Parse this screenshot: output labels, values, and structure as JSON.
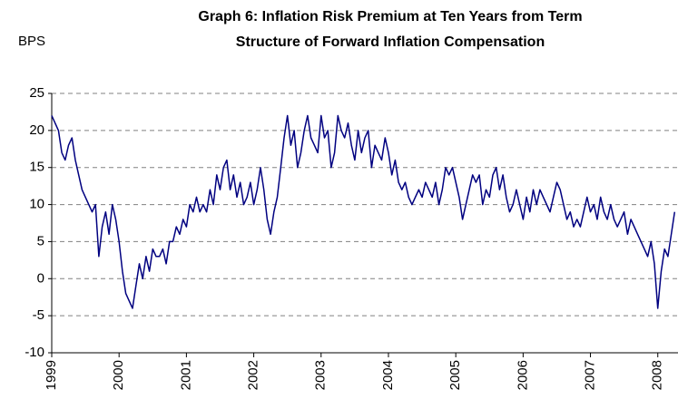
{
  "chart_data": {
    "type": "line",
    "title": "Graph 6: Inflation Risk Premium at Ten Years from Term",
    "subtitle": "Structure of Forward Inflation Compensation",
    "y_label": "BPS",
    "x": [
      1999.0,
      1999.05,
      1999.1,
      1999.15,
      1999.2,
      1999.25,
      1999.3,
      1999.35,
      1999.4,
      1999.45,
      1999.5,
      1999.55,
      1999.6,
      1999.65,
      1999.7,
      1999.75,
      1999.8,
      1999.85,
      1999.9,
      1999.95,
      2000.0,
      2000.05,
      2000.1,
      2000.15,
      2000.2,
      2000.25,
      2000.3,
      2000.35,
      2000.4,
      2000.45,
      2000.5,
      2000.55,
      2000.6,
      2000.65,
      2000.7,
      2000.75,
      2000.8,
      2000.85,
      2000.9,
      2000.95,
      2001.0,
      2001.05,
      2001.1,
      2001.15,
      2001.2,
      2001.25,
      2001.3,
      2001.35,
      2001.4,
      2001.45,
      2001.5,
      2001.55,
      2001.6,
      2001.65,
      2001.7,
      2001.75,
      2001.8,
      2001.85,
      2001.9,
      2001.95,
      2002.0,
      2002.05,
      2002.1,
      2002.15,
      2002.2,
      2002.25,
      2002.3,
      2002.35,
      2002.4,
      2002.45,
      2002.5,
      2002.55,
      2002.6,
      2002.65,
      2002.7,
      2002.75,
      2002.8,
      2002.85,
      2002.9,
      2002.95,
      2003.0,
      2003.05,
      2003.1,
      2003.15,
      2003.2,
      2003.25,
      2003.3,
      2003.35,
      2003.4,
      2003.45,
      2003.5,
      2003.55,
      2003.6,
      2003.65,
      2003.7,
      2003.75,
      2003.8,
      2003.85,
      2003.9,
      2003.95,
      2004.0,
      2004.05,
      2004.1,
      2004.15,
      2004.2,
      2004.25,
      2004.3,
      2004.35,
      2004.4,
      2004.45,
      2004.5,
      2004.55,
      2004.6,
      2004.65,
      2004.7,
      2004.75,
      2004.8,
      2004.85,
      2004.9,
      2004.95,
      2005.0,
      2005.05,
      2005.1,
      2005.15,
      2005.2,
      2005.25,
      2005.3,
      2005.35,
      2005.4,
      2005.45,
      2005.5,
      2005.55,
      2005.6,
      2005.65,
      2005.7,
      2005.75,
      2005.8,
      2005.85,
      2005.9,
      2005.95,
      2006.0,
      2006.05,
      2006.1,
      2006.15,
      2006.2,
      2006.25,
      2006.3,
      2006.35,
      2006.4,
      2006.45,
      2006.5,
      2006.55,
      2006.6,
      2006.65,
      2006.7,
      2006.75,
      2006.8,
      2006.85,
      2006.9,
      2006.95,
      2007.0,
      2007.05,
      2007.1,
      2007.15,
      2007.2,
      2007.25,
      2007.3,
      2007.35,
      2007.4,
      2007.45,
      2007.5,
      2007.55,
      2007.6,
      2007.65,
      2007.7,
      2007.75,
      2007.8,
      2007.85,
      2007.9,
      2007.95,
      2008.0,
      2008.05,
      2008.1,
      2008.15,
      2008.2,
      2008.25
    ],
    "series": [
      {
        "color": "#000080",
        "values": [
          22,
          21,
          20,
          17,
          16,
          18,
          19,
          16,
          14,
          12,
          11,
          10,
          9,
          10,
          3,
          7,
          9,
          6,
          10,
          8,
          5,
          1,
          -2,
          -3,
          -4,
          -1,
          2,
          0,
          3,
          1,
          4,
          3,
          3,
          4,
          2,
          5,
          5,
          7,
          6,
          8,
          7,
          10,
          9,
          11,
          9,
          10,
          9,
          12,
          10,
          14,
          12,
          15,
          16,
          12,
          14,
          11,
          13,
          10,
          11,
          13,
          10,
          12,
          15,
          12,
          8,
          6,
          9,
          11,
          15,
          19,
          22,
          18,
          20,
          15,
          17,
          20,
          22,
          19,
          18,
          17,
          22,
          19,
          20,
          15,
          17,
          22,
          20,
          19,
          21,
          18,
          16,
          20,
          17,
          19,
          20,
          15,
          18,
          17,
          16,
          19,
          17,
          14,
          16,
          13,
          12,
          13,
          11,
          10,
          11,
          12,
          11,
          13,
          12,
          11,
          13,
          10,
          12,
          15,
          14,
          15,
          13,
          11,
          8,
          10,
          12,
          14,
          13,
          14,
          10,
          12,
          11,
          14,
          15,
          12,
          14,
          11,
          9,
          10,
          12,
          10,
          8,
          11,
          9,
          12,
          10,
          12,
          11,
          10,
          9,
          11,
          13,
          12,
          10,
          8,
          9,
          7,
          8,
          7,
          9,
          11,
          9,
          10,
          8,
          11,
          9,
          8,
          10,
          8,
          7,
          8,
          9,
          6,
          8,
          7,
          6,
          5,
          4,
          3,
          5,
          2,
          -4,
          1,
          4,
          3,
          6,
          9
        ]
      }
    ],
    "xlim": [
      1999,
      2008.3
    ],
    "xticks": [
      1999,
      2000,
      2001,
      2002,
      2003,
      2004,
      2005,
      2006,
      2007,
      2008
    ],
    "ylim": [
      -10,
      25
    ],
    "yticks": [
      -10,
      -5,
      0,
      5,
      10,
      15,
      20,
      25
    ],
    "grid": true
  }
}
